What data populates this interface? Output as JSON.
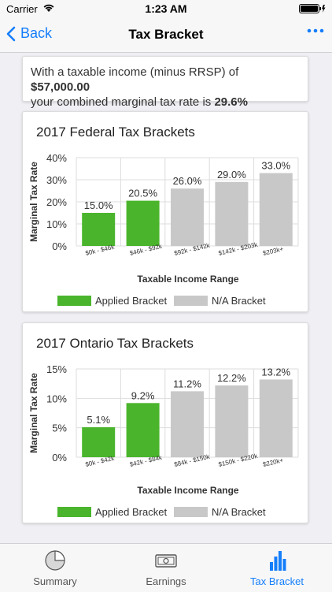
{
  "status_bar": {
    "carrier": "Carrier",
    "time": "1:23 AM"
  },
  "nav": {
    "back_label": "Back",
    "title": "Tax Bracket"
  },
  "summary": {
    "prefix": "With a taxable income (minus RRSP) of",
    "income": "$57,000.00",
    "middle": "your combined marginal tax rate is",
    "rate": "29.6%"
  },
  "colors": {
    "applied": "#4ab52c",
    "na": "#c8c8c8",
    "accent": "#147efb",
    "tab_inactive": "#8e8e93"
  },
  "chart_data": [
    {
      "type": "bar",
      "title": "2017 Federal Tax Brackets",
      "xlabel": "Taxable Income Range",
      "ylabel": "Marginal Tax Rate",
      "ylim": [
        0,
        40
      ],
      "yticks": [
        "0%",
        "10%",
        "20%",
        "30%",
        "40%"
      ],
      "ytick_values": [
        0,
        10,
        20,
        30,
        40
      ],
      "categories": [
        "$0k - $46k",
        "$46k - $92k",
        "$92k - $142k",
        "$142k - $203k",
        "$203k+"
      ],
      "values": [
        15.0,
        20.5,
        26.0,
        29.0,
        33.0
      ],
      "value_labels": [
        "15.0%",
        "20.5%",
        "26.0%",
        "29.0%",
        "33.0%"
      ],
      "applied": [
        true,
        true,
        false,
        false,
        false
      ],
      "legend": [
        "Applied Bracket",
        "N/A Bracket"
      ],
      "grid": true,
      "legend_position": "bottom"
    },
    {
      "type": "bar",
      "title": "2017 Ontario Tax Brackets",
      "xlabel": "Taxable Income Range",
      "ylabel": "Marginal Tax Rate",
      "ylim": [
        0,
        15
      ],
      "yticks": [
        "0%",
        "5%",
        "10%",
        "15%"
      ],
      "ytick_values": [
        0,
        5,
        10,
        15
      ],
      "categories": [
        "$0k - $42k",
        "$42k - $84k",
        "$84k - $150k",
        "$150k - $220k",
        "$220k+"
      ],
      "values": [
        5.1,
        9.2,
        11.2,
        12.2,
        13.2
      ],
      "value_labels": [
        "5.1%",
        "9.2%",
        "11.2%",
        "12.2%",
        "13.2%"
      ],
      "applied": [
        true,
        true,
        false,
        false,
        false
      ],
      "legend": [
        "Applied Bracket",
        "N/A Bracket"
      ],
      "grid": true,
      "legend_position": "bottom"
    }
  ],
  "tabs": [
    {
      "label": "Summary",
      "icon": "pie-chart-icon",
      "active": false
    },
    {
      "label": "Earnings",
      "icon": "money-icon",
      "active": false
    },
    {
      "label": "Tax Bracket",
      "icon": "bar-chart-icon",
      "active": true
    }
  ]
}
